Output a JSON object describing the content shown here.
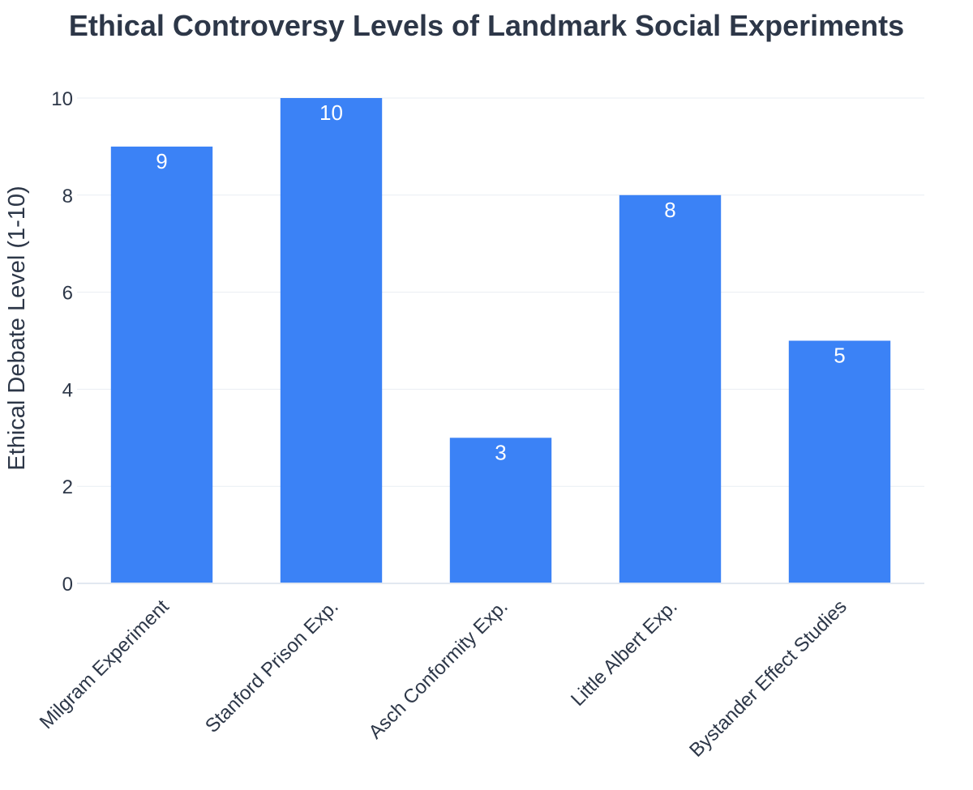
{
  "chart_data": {
    "type": "bar",
    "title": "Ethical Controversy Levels of Landmark Social Experiments",
    "xlabel": "",
    "ylabel": "Ethical Debate Level (1-10)",
    "categories": [
      "Milgram Experiment",
      "Stanford Prison Exp.",
      "Asch Conformity Exp.",
      "Little Albert Exp.",
      "Bystander Effect Studies"
    ],
    "values": [
      9,
      10,
      3,
      8,
      5
    ],
    "ylim": [
      0,
      10
    ],
    "yticks": [
      0,
      2,
      4,
      6,
      8,
      10
    ],
    "grid": true,
    "legend": "none",
    "bar_color": "#3b82f6",
    "text_color": "#2d3748",
    "grid_color": "#e9edf3"
  }
}
